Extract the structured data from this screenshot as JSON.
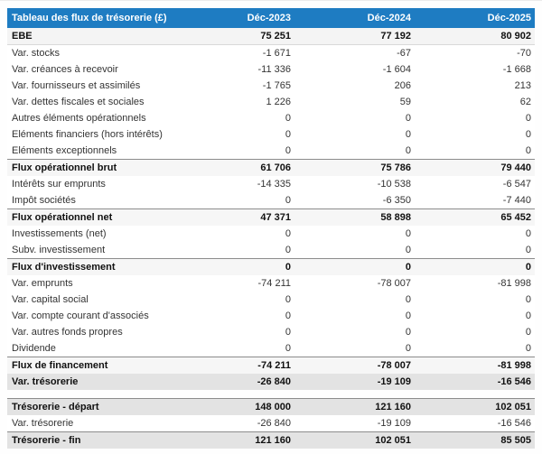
{
  "colors": {
    "header_bg": "#1e7cc2",
    "header_text": "#ffffff",
    "subtotal_row_bg": "#f6f6f6",
    "total_row_bg": "#e3e3e3",
    "rule_color": "#8c8c8c"
  },
  "table": {
    "title": "Tableau des flux de trésorerie (£)",
    "columns": [
      "Déc-2023",
      "Déc-2024",
      "Déc-2025"
    ],
    "rows": [
      {
        "label": "EBE",
        "values": [
          "75 251",
          "77 192",
          "80 902"
        ],
        "style": "ebe"
      },
      {
        "label": "Var. stocks",
        "values": [
          "-1 671",
          "-67",
          "-70"
        ],
        "style": "normal"
      },
      {
        "label": "Var. créances à recevoir",
        "values": [
          "-11 336",
          "-1 604",
          "-1 668"
        ],
        "style": "normal"
      },
      {
        "label": "Var. fournisseurs et assimilés",
        "values": [
          "-1 765",
          "206",
          "213"
        ],
        "style": "normal"
      },
      {
        "label": "Var. dettes fiscales et sociales",
        "values": [
          "1 226",
          "59",
          "62"
        ],
        "style": "normal"
      },
      {
        "label": "Autres éléments opérationnels",
        "values": [
          "0",
          "0",
          "0"
        ],
        "style": "normal"
      },
      {
        "label": "Eléments financiers (hors intérêts)",
        "values": [
          "0",
          "0",
          "0"
        ],
        "style": "normal"
      },
      {
        "label": "Eléments exceptionnels",
        "values": [
          "0",
          "0",
          "0"
        ],
        "style": "normal"
      },
      {
        "label": "Flux opérationnel brut",
        "values": [
          "61 706",
          "75 786",
          "79 440"
        ],
        "style": "subtotal"
      },
      {
        "label": "Intérêts sur emprunts",
        "values": [
          "-14 335",
          "-10 538",
          "-6 547"
        ],
        "style": "normal"
      },
      {
        "label": "Impôt sociétés",
        "values": [
          "0",
          "-6 350",
          "-7 440"
        ],
        "style": "normal"
      },
      {
        "label": "Flux opérationnel net",
        "values": [
          "47 371",
          "58 898",
          "65 452"
        ],
        "style": "subtotal"
      },
      {
        "label": "Investissements (net)",
        "values": [
          "0",
          "0",
          "0"
        ],
        "style": "normal"
      },
      {
        "label": "Subv. investissement",
        "values": [
          "0",
          "0",
          "0"
        ],
        "style": "normal"
      },
      {
        "label": "Flux d'investissement",
        "values": [
          "0",
          "0",
          "0"
        ],
        "style": "subtotal"
      },
      {
        "label": "Var. emprunts",
        "values": [
          "-74 211",
          "-78 007",
          "-81 998"
        ],
        "style": "normal"
      },
      {
        "label": "Var. capital social",
        "values": [
          "0",
          "0",
          "0"
        ],
        "style": "normal"
      },
      {
        "label": "Var. compte courant d'associés",
        "values": [
          "0",
          "0",
          "0"
        ],
        "style": "normal"
      },
      {
        "label": "Var. autres fonds propres",
        "values": [
          "0",
          "0",
          "0"
        ],
        "style": "normal"
      },
      {
        "label": "Dividende",
        "values": [
          "0",
          "0",
          "0"
        ],
        "style": "normal"
      },
      {
        "label": "Flux de financement",
        "values": [
          "-74 211",
          "-78 007",
          "-81 998"
        ],
        "style": "subtotal"
      },
      {
        "label": "Var. trésorerie",
        "values": [
          "-26 840",
          "-19 109",
          "-16 546"
        ],
        "style": "gray"
      },
      {
        "label": "Trésorerie - départ",
        "values": [
          "148 000",
          "121 160",
          "102 051"
        ],
        "style": "gray-border",
        "spacer_before": true
      },
      {
        "label": "Var. trésorerie",
        "values": [
          "-26 840",
          "-19 109",
          "-16 546"
        ],
        "style": "normal"
      },
      {
        "label": "Trésorerie - fin",
        "values": [
          "121 160",
          "102 051",
          "85 505"
        ],
        "style": "gray-border"
      }
    ]
  }
}
